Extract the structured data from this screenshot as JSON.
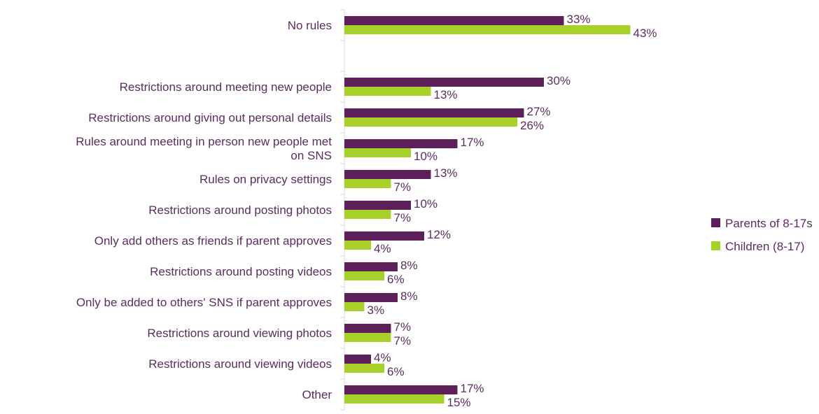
{
  "chart_data": {
    "type": "bar",
    "orientation": "horizontal",
    "categories": [
      "No rules",
      "",
      "Restrictions around meeting new people",
      "Restrictions around giving out personal details",
      "Rules around meeting in person new people met on SNS",
      "Rules on privacy settings",
      "Restrictions around posting photos",
      "Only add others as friends if parent approves",
      "Restrictions around posting videos",
      "Only be added to others' SNS if parent approves",
      "Restrictions around viewing photos",
      "Restrictions around viewing videos",
      "Other"
    ],
    "category_lines": [
      [
        "No rules"
      ],
      [],
      [
        "Restrictions around meeting new people"
      ],
      [
        "Restrictions around giving out personal details"
      ],
      [
        "Rules around meeting in person new people met",
        "on SNS"
      ],
      [
        "Rules on privacy settings"
      ],
      [
        "Restrictions around posting photos"
      ],
      [
        "Only add others as friends if parent approves"
      ],
      [
        "Restrictions around posting videos"
      ],
      [
        "Only be added to others' SNS if parent approves"
      ],
      [
        "Restrictions around viewing photos"
      ],
      [
        "Restrictions around viewing videos"
      ],
      [
        "Other"
      ]
    ],
    "series": [
      {
        "name": "Parents of 8-17s",
        "color": "#5c1f5a",
        "values": [
          33,
          null,
          30,
          27,
          17,
          13,
          10,
          12,
          8,
          8,
          7,
          4,
          17
        ],
        "labels": [
          "33%",
          "",
          "30%",
          "27%",
          "17%",
          "13%",
          "10%",
          "12%",
          "8%",
          "8%",
          "7%",
          "4%",
          "17%"
        ]
      },
      {
        "name": "Children (8-17)",
        "color": "#a7d129",
        "values": [
          43,
          null,
          13,
          26,
          10,
          7,
          7,
          4,
          6,
          3,
          7,
          6,
          15
        ],
        "labels": [
          "43%",
          "",
          "13%",
          "26%",
          "10%",
          "7%",
          "7%",
          "4%",
          "6%",
          "3%",
          "7%",
          "6%",
          "15%"
        ]
      }
    ],
    "xlim": [
      0,
      50
    ],
    "grid": false,
    "legend_position": "right"
  }
}
